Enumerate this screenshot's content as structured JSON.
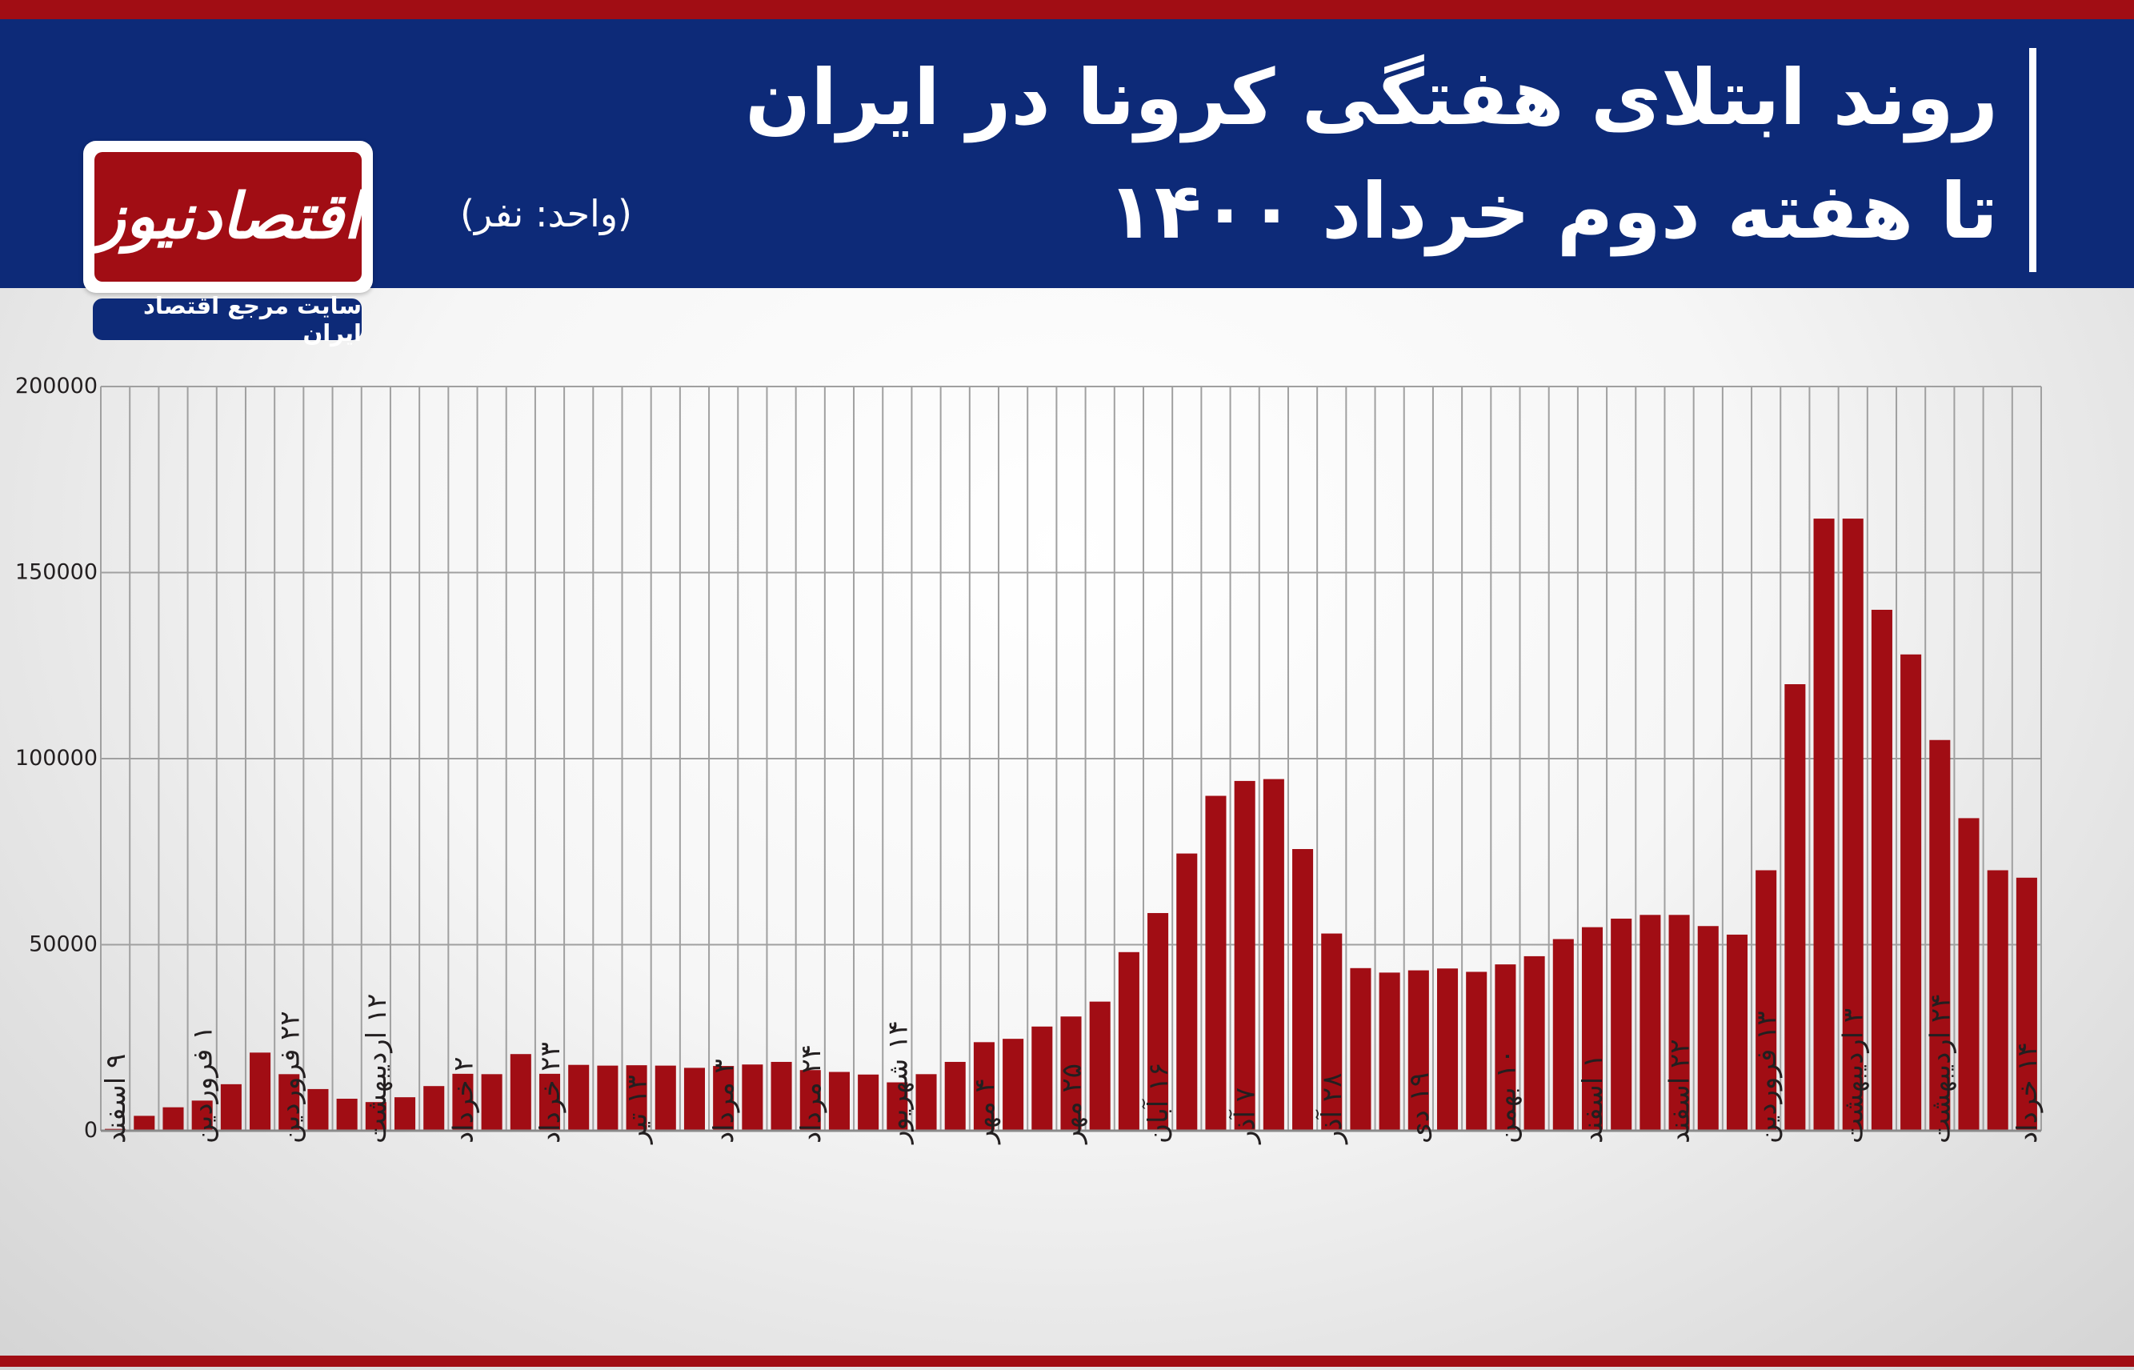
{
  "header": {
    "title_line1": "روند ابتلای هفتگی کرونا در ایران",
    "title_line2": "تا هفته دوم خرداد ۱۴۰۰",
    "unit": "(واحد: نفر)"
  },
  "logo": {
    "name": "اقتصادنیوز",
    "tagline": "سایت مرجع اقتصاد ایران"
  },
  "colors": {
    "bar": "#a10d14",
    "header_bg": "#0d2a78",
    "grid": "#a0a0a0"
  },
  "chart_data": {
    "type": "bar",
    "title": "روند ابتلای هفتگی کرونا در ایران تا هفته دوم خرداد ۱۴۰۰",
    "ylabel": "(واحد: نفر)",
    "ylim": [
      0,
      200000
    ],
    "yticks": [
      0,
      50000,
      100000,
      150000,
      200000
    ],
    "ytick_labels": [
      "0",
      "50000",
      "100000",
      "150000",
      "200000"
    ],
    "grid": true,
    "values": [
      500,
      4000,
      6300,
      8100,
      12500,
      21000,
      15200,
      11200,
      8600,
      7700,
      9000,
      12000,
      15300,
      15200,
      20600,
      15300,
      17700,
      17500,
      17600,
      17500,
      16900,
      17400,
      17800,
      18500,
      16300,
      15800,
      15100,
      13000,
      15200,
      18500,
      23800,
      24700,
      28000,
      30700,
      34700,
      48000,
      58500,
      74500,
      90000,
      94000,
      94500,
      75700,
      53000,
      43700,
      42500,
      43100,
      43600,
      42700,
      44700,
      46900,
      51500,
      54700,
      57000,
      58000,
      58000,
      55000,
      52700,
      70000,
      120000,
      164500,
      164500,
      140000,
      128000,
      105000,
      84000,
      70000,
      68000
    ],
    "x_labels": [
      {
        "index": 0,
        "text": "۹ اسفند"
      },
      {
        "index": 3,
        "text": "۱ فروردین"
      },
      {
        "index": 6,
        "text": "۲۲ فروردین"
      },
      {
        "index": 9,
        "text": "۱۲ اردیبهشت"
      },
      {
        "index": 12,
        "text": "۲ خرداد"
      },
      {
        "index": 15,
        "text": "۲۳ خرداد"
      },
      {
        "index": 18,
        "text": "۱۳ تیر"
      },
      {
        "index": 21,
        "text": "۳ مرداد"
      },
      {
        "index": 24,
        "text": "۲۴ مرداد"
      },
      {
        "index": 27,
        "text": "۱۴ شهریور"
      },
      {
        "index": 30,
        "text": "۴ مهر"
      },
      {
        "index": 33,
        "text": "۲۵ مهر"
      },
      {
        "index": 36,
        "text": "۱۶ آبان"
      },
      {
        "index": 39,
        "text": "۷ آذر"
      },
      {
        "index": 42,
        "text": "۲۸ آذر"
      },
      {
        "index": 45,
        "text": "۱۹ دی"
      },
      {
        "index": 48,
        "text": "۱۰ بهمن"
      },
      {
        "index": 51,
        "text": "۱ اسفند"
      },
      {
        "index": 54,
        "text": "۲۲ اسفند"
      },
      {
        "index": 57,
        "text": "۱۳ فروردین"
      },
      {
        "index": 60,
        "text": "۳ اردیبهشت"
      },
      {
        "index": 63,
        "text": "۲۴ اردیبهشت"
      },
      {
        "index": 66,
        "text": "۱۴ خرداد"
      }
    ]
  }
}
